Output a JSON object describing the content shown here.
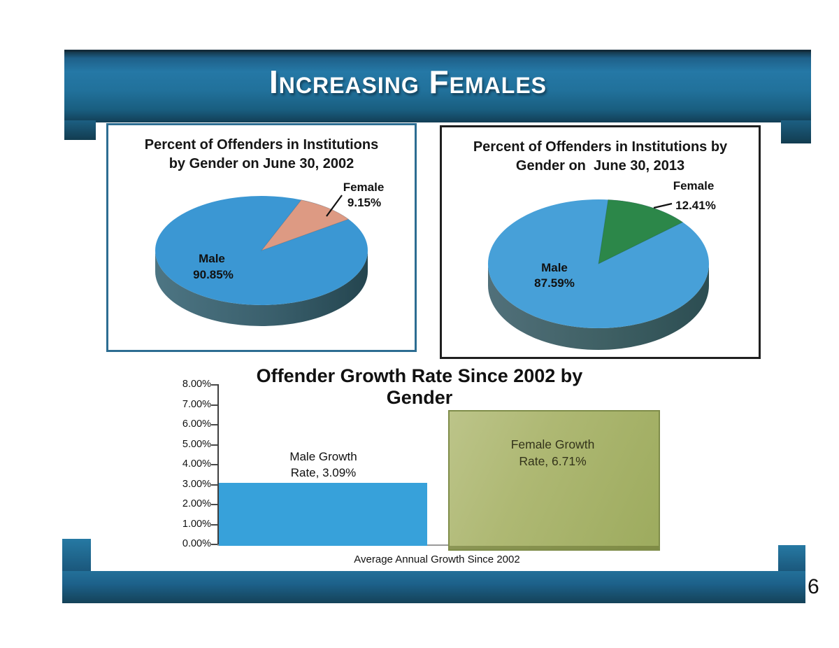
{
  "banner": {
    "title": "Increasing Females"
  },
  "page": {
    "number": "6"
  },
  "pie_2002": {
    "title_lines": [
      "Percent of Offenders in Institutions",
      "by Gender on June 30, 2002"
    ],
    "male_label": "Male",
    "male_value": "90.85%",
    "female_label": "Female",
    "female_value": "9.15%"
  },
  "pie_2013": {
    "title_lines": [
      "Percent of Offenders in Institutions by",
      "Gender on  June 30, 2013"
    ],
    "male_label": "Male",
    "male_value": "87.59%",
    "female_label": "Female",
    "female_value": "12.41%"
  },
  "bar_chart": {
    "title": "Offender Growth Rate Since 2002 by Gender",
    "x_axis_label": "Average Annual Growth Since 2002",
    "y_ticks": [
      "8.00%",
      "7.00%",
      "6.00%",
      "5.00%",
      "4.00%",
      "3.00%",
      "2.00%",
      "1.00%",
      "0.00%"
    ],
    "male_label_lines": [
      "Male Growth",
      "Rate, 3.09%"
    ],
    "female_label_lines": [
      "Female Growth",
      "Rate, 6.71%"
    ]
  },
  "colors": {
    "banner_blue": "#2173a0",
    "banner_blue_dark": "#123e55",
    "male_blue_2002": "#3b97d3",
    "female_salmon_2002": "#dd9a83",
    "male_blue_2013": "#47a0d8",
    "female_green_2013": "#2c8749",
    "bar_male_blue": "#37a1da",
    "bar_female_olive": "#a9b46b"
  },
  "chart_data": [
    {
      "type": "pie",
      "title": "Percent of Offenders in Institutions by Gender on June 30, 2002",
      "labels": [
        "Male",
        "Female"
      ],
      "values": [
        90.85,
        9.15
      ],
      "unit": "percent",
      "colors": [
        "#3b97d3",
        "#dd9a83"
      ],
      "start_angle_deg": -68,
      "style": "3d-pie"
    },
    {
      "type": "pie",
      "title": "Percent of Offenders in Institutions by Gender on June 30, 2013",
      "labels": [
        "Male",
        "Female"
      ],
      "values": [
        87.59,
        12.41
      ],
      "unit": "percent",
      "colors": [
        "#47a0d8",
        "#2c8749"
      ],
      "start_angle_deg": -85,
      "style": "3d-pie"
    },
    {
      "type": "bar",
      "title": "Offender Growth Rate Since 2002 by Gender",
      "xlabel": "Average Annual Growth Since 2002",
      "ylabel": "",
      "categories": [
        "Male Growth Rate",
        "Female Growth Rate"
      ],
      "values": [
        3.09,
        6.71
      ],
      "data_labels": [
        "Male Growth Rate, 3.09%",
        "Female Growth Rate, 6.71%"
      ],
      "unit": "percent",
      "ylim": [
        0,
        8
      ],
      "y_tick_step": 1,
      "grid": false,
      "legend": false,
      "colors": [
        "#37a1da",
        "#a9b46b"
      ]
    }
  ]
}
